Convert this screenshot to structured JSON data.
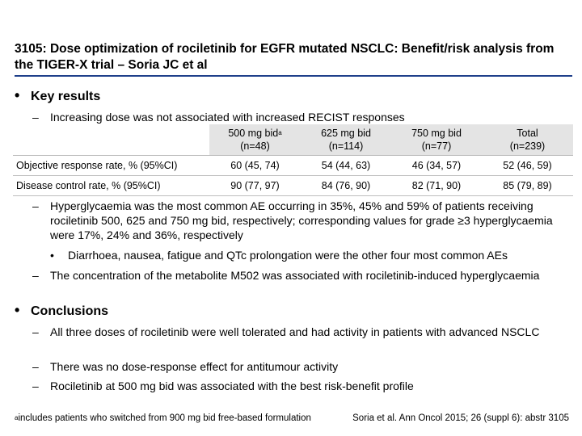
{
  "title": "3105: Dose optimization of rociletinib for EGFR mutated NSCLC: Benefit/risk analysis from the TIGER-X trial – Soria JC et al",
  "bullet_marker": "•",
  "dash_marker": "–",
  "key_results": {
    "heading": "Key results",
    "intro": "Increasing dose was not associated with increased RECIST responses",
    "table": {
      "columns": [
        {
          "line1": "500 mg bid",
          "sup": "a",
          "line2": "(n=48)"
        },
        {
          "line1": "625 mg bid",
          "sup": "",
          "line2": "(n=114)"
        },
        {
          "line1": "750 mg bid",
          "sup": "",
          "line2": "(n=77)"
        },
        {
          "line1": "Total",
          "sup": "",
          "line2": "(n=239)"
        }
      ],
      "rows": [
        {
          "label": "Objective response rate, % (95%CI)",
          "cells": [
            "60 (45, 74)",
            "54 (44, 63)",
            "46 (34, 57)",
            "52 (46, 59)"
          ]
        },
        {
          "label": "Disease control rate, % (95%CI)",
          "cells": [
            "90 (77, 97)",
            "84 (76, 90)",
            "82 (71, 90)",
            "85 (79, 89)"
          ]
        }
      ]
    },
    "point_hyperglycaemia": "Hyperglycaemia was the most common AE occurring in 35%, 45% and 59% of patients receiving rociletinib 500, 625 and 750 mg bid, respectively; corresponding values for grade ≥3 hyperglycaemia were 17%, 24% and 36%, respectively",
    "sub_point_other_aes": "Diarrhoea, nausea, fatigue and QTc prolongation were the other four most common AEs",
    "point_metabolite": "The concentration of the metabolite M502 was associated with rociletinib-induced hyperglycaemia"
  },
  "conclusions": {
    "heading": "Conclusions",
    "points": [
      "All three doses of rociletinib were well tolerated and had activity in patients with advanced NSCLC",
      "There was no dose-response effect for antitumour activity",
      "Rociletinib at 500 mg bid was associated with the best risk-benefit profile"
    ]
  },
  "footnote": {
    "marker": "a",
    "text": "includes patients who switched from 900 mg bid free-based formulation"
  },
  "citation": "Soria et al. Ann Oncol 2015; 26 (suppl 6): abstr 3105",
  "colors": {
    "rule": "#1f3f8a",
    "header_fill": "#e4e4e4"
  }
}
